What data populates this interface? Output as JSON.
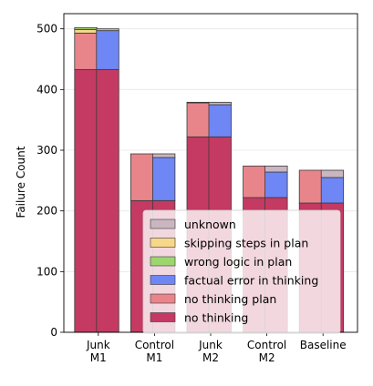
{
  "chart_data": {
    "type": "bar",
    "stacked": true,
    "ylabel": "Failure Count",
    "xlabel": "",
    "ylim": [
      0,
      525
    ],
    "yticks": [
      0,
      100,
      200,
      300,
      400,
      500
    ],
    "grid": "horizontal",
    "legend": "lower-right",
    "categories": [
      "Junk\nM1",
      "Control\nM1",
      "Junk\nM2",
      "Control\nM2",
      "Baseline"
    ],
    "groups": [
      {
        "bars": [
          {
            "segments": [
              {
                "series": "no thinking",
                "value": 433
              },
              {
                "series": "no thinking plan",
                "value": 60
              },
              {
                "series": "skipping steps in plan",
                "value": 6
              },
              {
                "series": "wrong logic in plan",
                "value": 3
              }
            ]
          },
          {
            "segments": [
              {
                "series": "no thinking",
                "value": 433
              },
              {
                "series": "factual error in thinking",
                "value": 64
              },
              {
                "series": "unknown",
                "value": 3
              }
            ]
          }
        ]
      },
      {
        "bars": [
          {
            "segments": [
              {
                "series": "no thinking",
                "value": 217
              },
              {
                "series": "no thinking plan",
                "value": 77
              }
            ]
          },
          {
            "segments": [
              {
                "series": "no thinking",
                "value": 217
              },
              {
                "series": "factual error in thinking",
                "value": 71
              },
              {
                "series": "unknown",
                "value": 6
              }
            ]
          }
        ]
      },
      {
        "bars": [
          {
            "segments": [
              {
                "series": "no thinking",
                "value": 322
              },
              {
                "series": "no thinking plan",
                "value": 56
              },
              {
                "series": "wrong logic in plan",
                "value": 1
              }
            ]
          },
          {
            "segments": [
              {
                "series": "no thinking",
                "value": 322
              },
              {
                "series": "factual error in thinking",
                "value": 53
              },
              {
                "series": "unknown",
                "value": 4
              }
            ]
          }
        ]
      },
      {
        "bars": [
          {
            "segments": [
              {
                "series": "no thinking",
                "value": 222
              },
              {
                "series": "no thinking plan",
                "value": 52
              }
            ]
          },
          {
            "segments": [
              {
                "series": "no thinking",
                "value": 222
              },
              {
                "series": "factual error in thinking",
                "value": 42
              },
              {
                "series": "unknown",
                "value": 10
              }
            ]
          }
        ]
      },
      {
        "bars": [
          {
            "segments": [
              {
                "series": "no thinking",
                "value": 213
              },
              {
                "series": "no thinking plan",
                "value": 54
              }
            ]
          },
          {
            "segments": [
              {
                "series": "no thinking",
                "value": 213
              },
              {
                "series": "factual error in thinking",
                "value": 42
              },
              {
                "series": "unknown",
                "value": 12
              }
            ]
          }
        ]
      }
    ],
    "series": [
      {
        "name": "unknown",
        "color": "#c9b6c0"
      },
      {
        "name": "skipping steps in plan",
        "color": "#f7d788"
      },
      {
        "name": "wrong logic in plan",
        "color": "#9ed66e"
      },
      {
        "name": "factual error in thinking",
        "color": "#6f86f5"
      },
      {
        "name": "no thinking plan",
        "color": "#e8858b"
      },
      {
        "name": "no thinking",
        "color": "#c43a62"
      }
    ]
  }
}
